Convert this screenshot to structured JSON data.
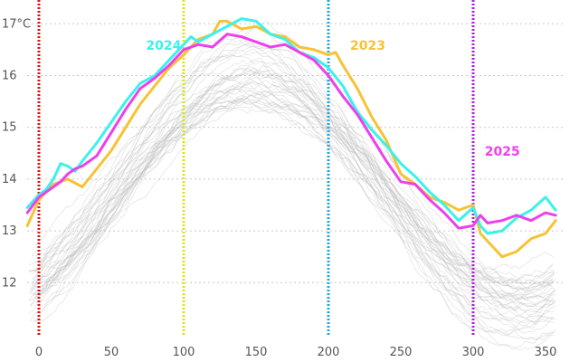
{
  "chart_data": {
    "type": "line",
    "title": "",
    "xlabel": "",
    "ylabel": "",
    "xlim": [
      -8,
      362
    ],
    "ylim": [
      11.0,
      17.3
    ],
    "x_ticks": [
      0,
      50,
      100,
      150,
      200,
      250,
      300,
      350
    ],
    "y_ticks": [
      12,
      13,
      14,
      15,
      16,
      17
    ],
    "y_tick_labels": [
      "12",
      "13",
      "14",
      "15",
      "16",
      "17°C"
    ],
    "grid": "horizontal dotted",
    "background_series_count": 40,
    "background_color": "#b5b5b5",
    "vertical_markers": [
      {
        "x": 0,
        "color": "#dd1111"
      },
      {
        "x": 100,
        "color": "#d8e619"
      },
      {
        "x": 200,
        "color": "#22a7dd"
      },
      {
        "x": 300,
        "color": "#aa22dd"
      }
    ],
    "series": [
      {
        "name": "2023",
        "color": "#f7c234",
        "x": [
          -8,
          0,
          5,
          10,
          20,
          30,
          40,
          50,
          60,
          70,
          80,
          90,
          100,
          105,
          110,
          115,
          120,
          125,
          130,
          140,
          150,
          160,
          170,
          180,
          190,
          200,
          205,
          210,
          220,
          230,
          240,
          250,
          260,
          270,
          280,
          290,
          300,
          305,
          310,
          320,
          330,
          340,
          350,
          357
        ],
        "y": [
          13.1,
          13.6,
          13.75,
          13.9,
          14.0,
          13.85,
          14.2,
          14.55,
          15.0,
          15.45,
          15.8,
          16.15,
          16.4,
          16.55,
          16.7,
          16.75,
          16.8,
          17.05,
          17.05,
          16.9,
          16.95,
          16.8,
          16.75,
          16.55,
          16.5,
          16.4,
          16.45,
          16.2,
          15.75,
          15.2,
          14.75,
          14.1,
          13.9,
          13.65,
          13.55,
          13.4,
          13.5,
          12.95,
          12.8,
          12.5,
          12.6,
          12.85,
          12.95,
          13.2
        ]
      },
      {
        "name": "2024",
        "color": "#3bf2ea",
        "x": [
          -8,
          0,
          5,
          10,
          15,
          20,
          25,
          30,
          40,
          50,
          60,
          70,
          80,
          90,
          100,
          105,
          110,
          120,
          130,
          140,
          150,
          160,
          170,
          180,
          190,
          200,
          210,
          220,
          230,
          240,
          250,
          260,
          270,
          280,
          290,
          300,
          305,
          310,
          320,
          330,
          340,
          350,
          357
        ],
        "y": [
          13.45,
          13.7,
          13.8,
          14.0,
          14.3,
          14.25,
          14.15,
          14.35,
          14.7,
          15.1,
          15.5,
          15.85,
          16.0,
          16.3,
          16.6,
          16.75,
          16.65,
          16.8,
          16.95,
          17.1,
          17.05,
          16.8,
          16.7,
          16.45,
          16.35,
          16.15,
          15.8,
          15.3,
          14.95,
          14.65,
          14.3,
          14.05,
          13.75,
          13.5,
          13.2,
          13.45,
          13.1,
          12.95,
          13.0,
          13.25,
          13.4,
          13.65,
          13.4
        ]
      },
      {
        "name": "2025",
        "color": "#ee3fee",
        "x": [
          -8,
          0,
          5,
          10,
          15,
          20,
          25,
          30,
          40,
          50,
          60,
          70,
          80,
          90,
          100,
          110,
          120,
          130,
          140,
          150,
          160,
          170,
          180,
          190,
          200,
          210,
          220,
          230,
          240,
          250,
          260,
          270,
          280,
          290,
          300,
          305,
          310,
          320,
          330,
          340,
          350,
          357
        ],
        "y": [
          13.35,
          13.65,
          13.75,
          13.85,
          13.95,
          14.1,
          14.2,
          14.25,
          14.45,
          14.9,
          15.35,
          15.75,
          15.95,
          16.2,
          16.5,
          16.6,
          16.55,
          16.8,
          16.75,
          16.65,
          16.55,
          16.6,
          16.45,
          16.3,
          16.0,
          15.6,
          15.25,
          14.8,
          14.35,
          13.95,
          13.9,
          13.6,
          13.35,
          13.05,
          13.1,
          13.3,
          13.15,
          13.2,
          13.3,
          13.2,
          13.35,
          13.3
        ]
      }
    ]
  }
}
